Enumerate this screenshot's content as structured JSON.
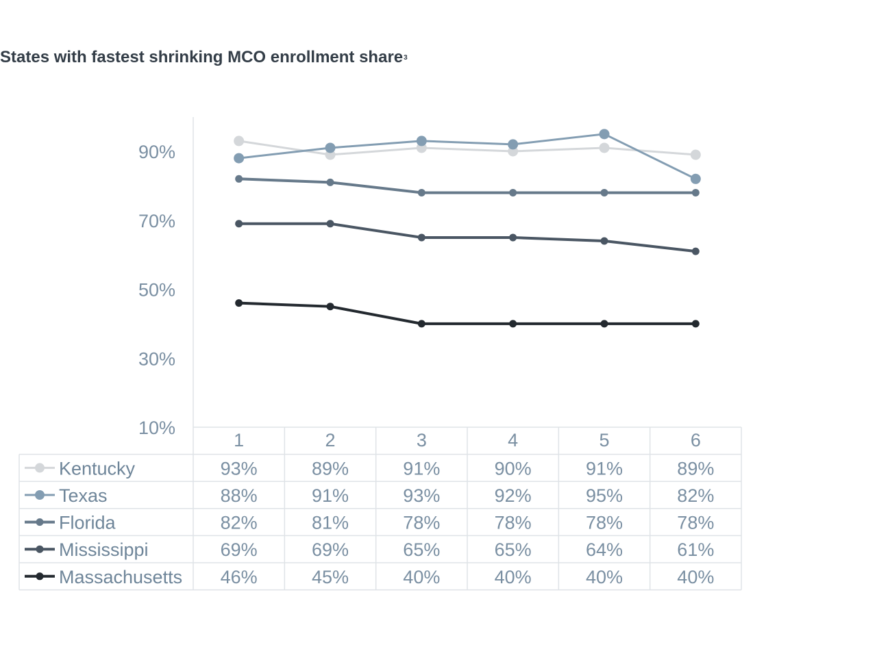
{
  "title": "States with fastest shrinking MCO enrollment share",
  "title_footnote": "3",
  "chart_data": {
    "type": "line",
    "title": "States with fastest shrinking MCO enrollment share",
    "categories": [
      "1",
      "2",
      "3",
      "4",
      "5",
      "6"
    ],
    "ylim": [
      10,
      100
    ],
    "yticks": [
      10,
      30,
      50,
      70,
      90
    ],
    "ytick_labels": [
      "10%",
      "30%",
      "50%",
      "70%",
      "90%"
    ],
    "xlabel": "",
    "ylabel": "",
    "grid": false,
    "legend": "data-table-below",
    "series": [
      {
        "name": "Kentucky",
        "color": "#d4d7da",
        "values": [
          93,
          89,
          91,
          90,
          91,
          89
        ],
        "labels": [
          "93%",
          "89%",
          "91%",
          "90%",
          "91%",
          "89%"
        ]
      },
      {
        "name": "Texas",
        "color": "#839db2",
        "values": [
          88,
          91,
          93,
          92,
          95,
          82
        ],
        "labels": [
          "88%",
          "91%",
          "93%",
          "92%",
          "95%",
          "82%"
        ]
      },
      {
        "name": "Florida",
        "color": "#66798a",
        "values": [
          82,
          81,
          78,
          78,
          78,
          78
        ],
        "labels": [
          "82%",
          "81%",
          "78%",
          "78%",
          "78%",
          "78%"
        ]
      },
      {
        "name": "Mississippi",
        "color": "#4a5663",
        "values": [
          69,
          69,
          65,
          65,
          64,
          61
        ],
        "labels": [
          "69%",
          "69%",
          "65%",
          "65%",
          "64%",
          "61%"
        ]
      },
      {
        "name": "Massachusetts",
        "color": "#23292f",
        "values": [
          46,
          45,
          40,
          40,
          40,
          40
        ],
        "labels": [
          "46%",
          "45%",
          "40%",
          "40%",
          "40%",
          "40%"
        ]
      }
    ]
  }
}
